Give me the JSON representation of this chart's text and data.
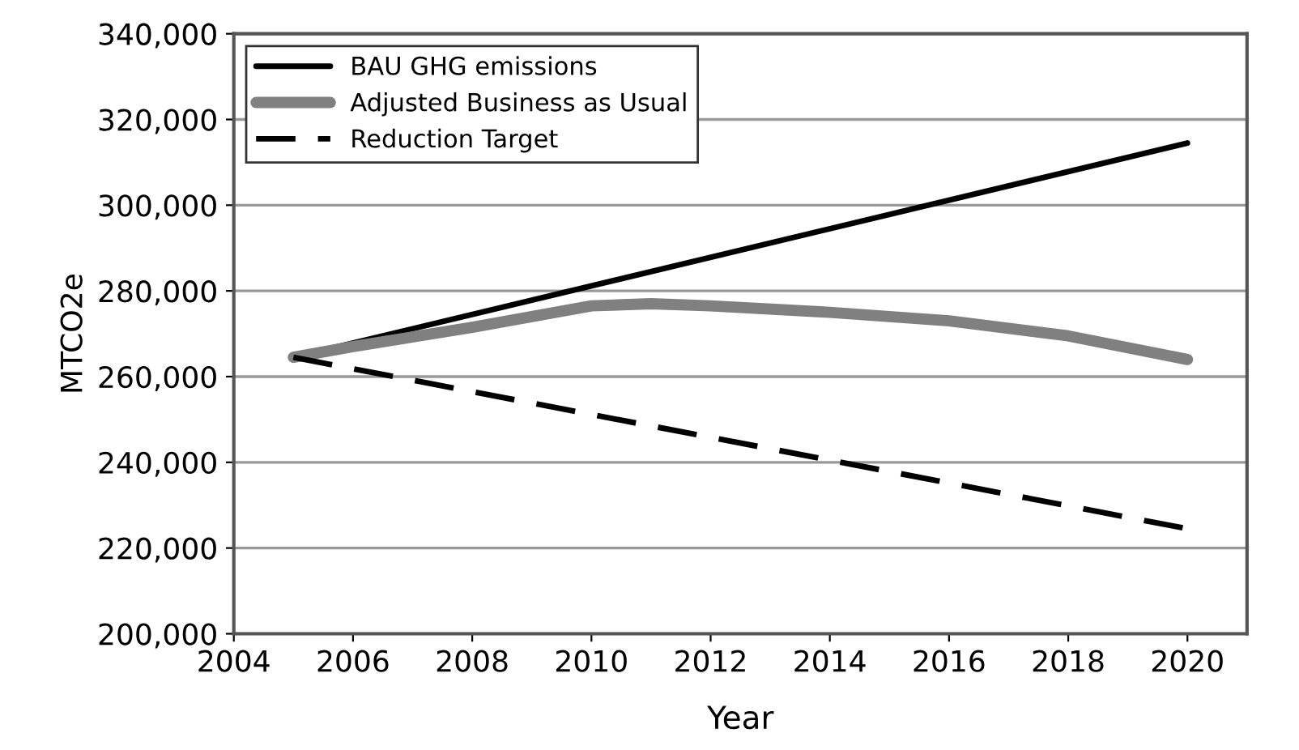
{
  "chart_data": {
    "type": "line",
    "xlabel": "Year",
    "ylabel": "MTCO2e",
    "xlim": [
      2004,
      2021
    ],
    "xticks": [
      2004,
      2006,
      2008,
      2010,
      2012,
      2014,
      2016,
      2018,
      2020
    ],
    "ylim": [
      200000,
      340000
    ],
    "yticks": [
      {
        "value": 200000,
        "label": "200,000"
      },
      {
        "value": 220000,
        "label": "220,000"
      },
      {
        "value": 240000,
        "label": "240,000"
      },
      {
        "value": 260000,
        "label": "260,000"
      },
      {
        "value": 280000,
        "label": "280,000"
      },
      {
        "value": 300000,
        "label": "300,000"
      },
      {
        "value": 320000,
        "label": "320,000"
      },
      {
        "value": 340000,
        "label": "340,000"
      }
    ],
    "grid": "y",
    "legend": "top left",
    "series": [
      {
        "name": "BAU GHG emissions",
        "color": "#000000",
        "line_style": "solid",
        "x": [
          2005,
          2020
        ],
        "values": [
          264500,
          314500
        ]
      },
      {
        "name": "Adjusted Business as Usual",
        "color": "#808080",
        "line_style": "solid",
        "x": [
          2005,
          2006,
          2008,
          2010,
          2011,
          2012,
          2014,
          2016,
          2018,
          2020
        ],
        "values": [
          264500,
          267000,
          271500,
          276500,
          277000,
          276500,
          275000,
          273000,
          269500,
          264000
        ]
      },
      {
        "name": "Reduction Target",
        "color": "#000000",
        "line_style": "dashed",
        "x": [
          2005,
          2020
        ],
        "values": [
          264500,
          224500
        ]
      }
    ]
  }
}
